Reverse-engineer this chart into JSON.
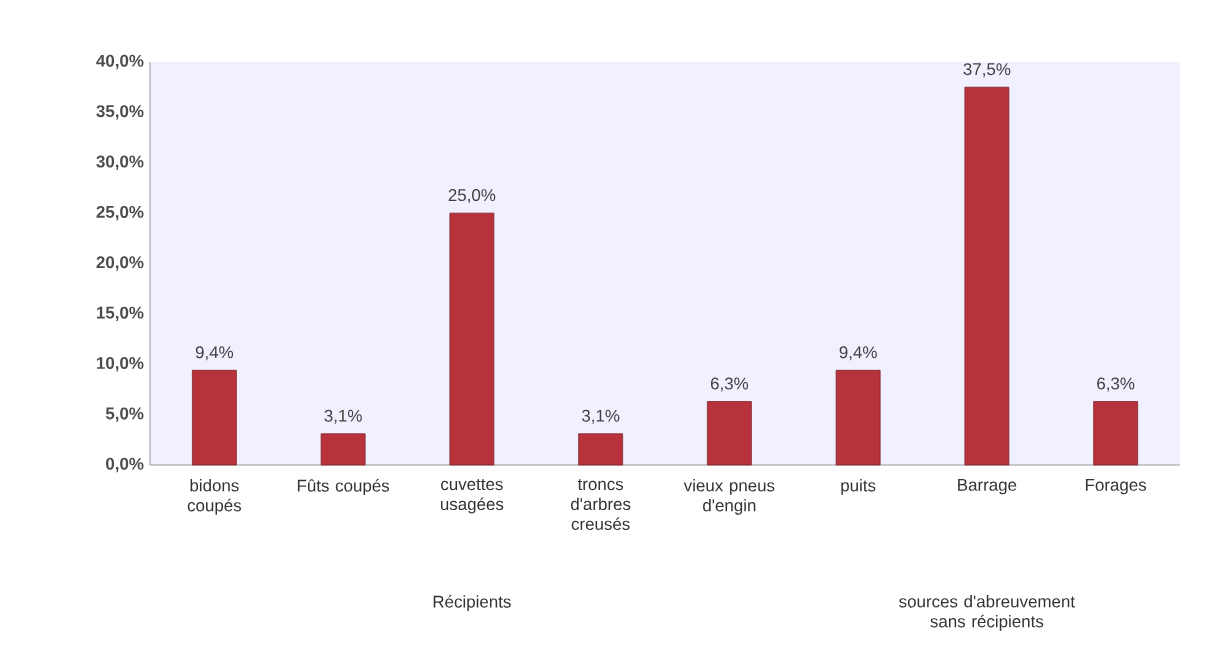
{
  "chart_data": {
    "type": "bar",
    "categories": [
      "bidons coupés",
      "Fûts coupés",
      "cuvettes usagées",
      "troncs d'arbres creusés",
      "vieux pneus d'engin",
      "puits",
      "Barrage",
      "Forages"
    ],
    "values": [
      9.4,
      3.1,
      25.0,
      3.1,
      6.3,
      9.4,
      37.5,
      6.3
    ],
    "value_labels": [
      "9,4%",
      "3,1%",
      "25,0%",
      "3,1%",
      "6,3%",
      "9,4%",
      "37,5%",
      "6,3%"
    ],
    "color": "#b8323c",
    "ylim": [
      0,
      40
    ],
    "yticks": [
      {
        "value": 0,
        "label": "0,0%"
      },
      {
        "value": 5,
        "label": "5,0%"
      },
      {
        "value": 10,
        "label": "10,0%"
      },
      {
        "value": 15,
        "label": "15,0%"
      },
      {
        "value": 20,
        "label": "20,0%"
      },
      {
        "value": 25,
        "label": "25,0%"
      },
      {
        "value": 30,
        "label": "30,0%"
      },
      {
        "value": 35,
        "label": "35,0%"
      },
      {
        "value": 40,
        "label": "40,0%"
      }
    ],
    "annotations": [
      "Récipients",
      "sources d'abreuvement sans récipients"
    ]
  }
}
